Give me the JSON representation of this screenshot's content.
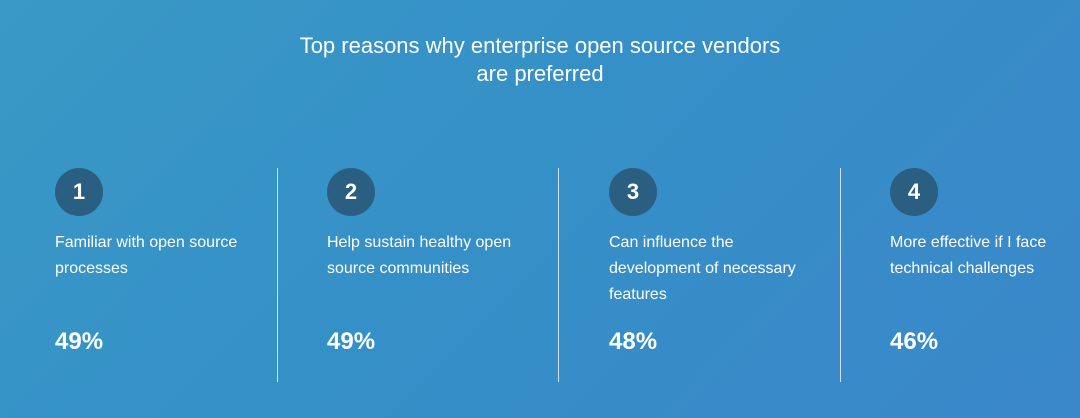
{
  "title": {
    "line1": "Top reasons why enterprise open source vendors",
    "line2": "are preferred"
  },
  "reasons": [
    {
      "number": "1",
      "label": "Familiar with open source processes",
      "percent": "49%"
    },
    {
      "number": "2",
      "label": "Help sustain healthy open source communities",
      "percent": "49%"
    },
    {
      "number": "3",
      "label": "Can influence the development of necessary features",
      "percent": "48%"
    },
    {
      "number": "4",
      "label": "More effective if I face technical challenges",
      "percent": "46%"
    }
  ],
  "colors": {
    "background_start": "#3a99c6",
    "background_end": "#3a87c9",
    "badge": "#2a5f82",
    "text": "#ffffff"
  }
}
